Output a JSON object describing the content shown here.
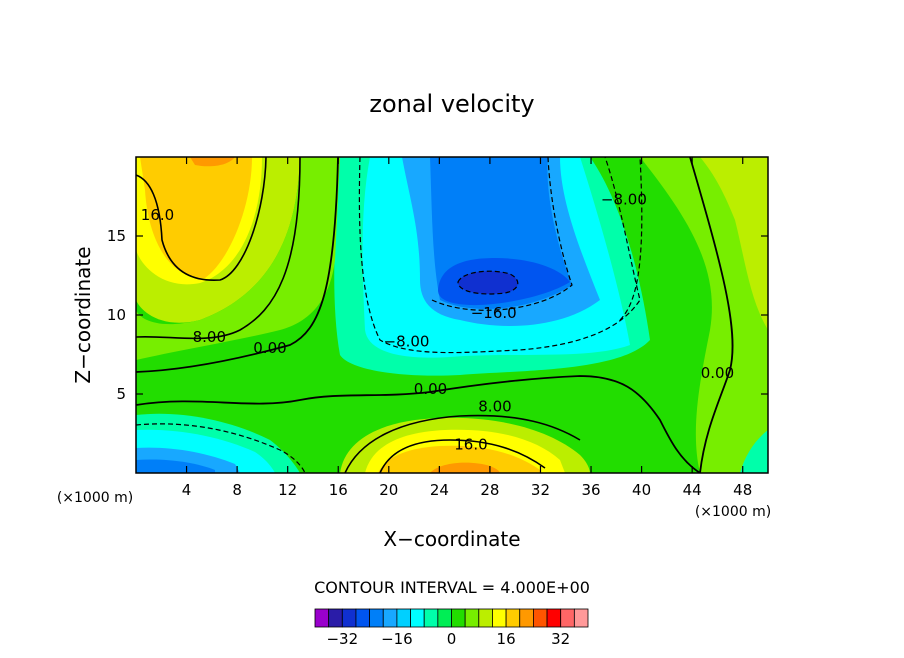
{
  "chart_data": {
    "type": "heatmap",
    "title": "zonal velocity",
    "xlabel": "X−coordinate",
    "ylabel": "Z−coordinate",
    "x_unit": "(×1000 m)",
    "y_unit": "(×1000 m)",
    "xlim": [
      0,
      50
    ],
    "ylim": [
      0,
      20
    ],
    "xticks": [
      4,
      8,
      12,
      16,
      20,
      24,
      28,
      32,
      36,
      40,
      44,
      48
    ],
    "yticks": [
      5,
      10,
      15
    ],
    "contour_interval_label": "CONTOUR INTERVAL = 4.000E+00",
    "contour_labels": [
      {
        "text": "16.0",
        "x": 1.7,
        "y": 16.0
      },
      {
        "text": "8.00",
        "x": 5.8,
        "y": 8.3
      },
      {
        "text": "0.00",
        "x": 10.6,
        "y": 7.6
      },
      {
        "text": "−8.00",
        "x": 21.4,
        "y": 8.0
      },
      {
        "text": "−16.0",
        "x": 28.3,
        "y": 9.8
      },
      {
        "text": "−8.00",
        "x": 38.6,
        "y": 17.0
      },
      {
        "text": "0.00",
        "x": 46.0,
        "y": 6.0
      },
      {
        "text": "0.00",
        "x": 23.3,
        "y": 5.0
      },
      {
        "text": "8.00",
        "x": 28.4,
        "y": 3.9
      },
      {
        "text": "16.0",
        "x": 26.5,
        "y": 1.5
      }
    ],
    "colorbar": {
      "levels": [
        -36,
        -32,
        -28,
        -24,
        -20,
        -16,
        -12,
        -8,
        -4,
        0,
        4,
        8,
        12,
        16,
        20,
        24,
        28,
        32,
        36
      ],
      "tick_labels": [
        "−32",
        "−16",
        "0",
        "16",
        "32"
      ],
      "tick_values": [
        -32,
        -16,
        0,
        16,
        32
      ],
      "colors": [
        "#9900cc",
        "#2a1ca8",
        "#1030d0",
        "#0055f0",
        "#007ff8",
        "#18a8ff",
        "#00d0ff",
        "#00ffff",
        "#00ffaa",
        "#00ee55",
        "#22dd00",
        "#77ee00",
        "#bbee00",
        "#ffff00",
        "#ffcc00",
        "#ff9900",
        "#ff5500",
        "#ff0000",
        "#ff6666",
        "#ff9999"
      ]
    }
  }
}
